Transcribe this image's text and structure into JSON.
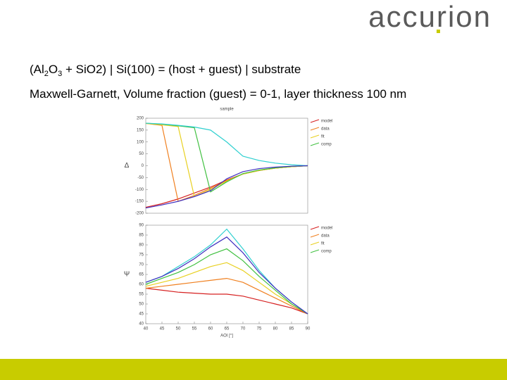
{
  "logo": "accurion",
  "heading": [
    "(Al",
    "2",
    "O",
    "3",
    " + SiO2) | Si(100) = (host + guest) | substrate"
  ],
  "subheading": "Maxwell-Garnett, Volume fraction (guest) = 0-1, layer thickness 100 nm",
  "chart_data": [
    {
      "type": "line",
      "title": "sample",
      "y_label": "Δ",
      "x": [
        40,
        45,
        50,
        55,
        60,
        65,
        70,
        75,
        80,
        85,
        90
      ],
      "xlim": [
        40,
        90
      ],
      "ylim": [
        -200,
        200
      ],
      "yticks": [
        -200,
        -150,
        -100,
        -50,
        0,
        50,
        100,
        150,
        200
      ],
      "legend": [
        "model",
        "data",
        "fit",
        "comp"
      ],
      "series": [
        {
          "color": "#d62020",
          "values": [
            -175,
            -160,
            -140,
            -115,
            -90,
            -60,
            -35,
            -20,
            -10,
            -4,
            0
          ]
        },
        {
          "color": "#f08020",
          "values": [
            178,
            170,
            -150,
            -125,
            -95,
            -62,
            -35,
            -20,
            -10,
            -4,
            0
          ]
        },
        {
          "color": "#e8d020",
          "values": [
            178,
            172,
            165,
            -130,
            -100,
            -65,
            -35,
            -20,
            -10,
            -4,
            0
          ]
        },
        {
          "color": "#40c040",
          "values": [
            179,
            175,
            168,
            160,
            -110,
            -68,
            -33,
            -18,
            -9,
            -3,
            0
          ]
        },
        {
          "color": "#30d0d0",
          "values": [
            179,
            176,
            170,
            163,
            150,
            100,
            40,
            22,
            11,
            4,
            0
          ]
        },
        {
          "color": "#4030c0",
          "values": [
            -178,
            -165,
            -150,
            -130,
            -105,
            -55,
            -25,
            -12,
            -6,
            -2,
            0
          ]
        }
      ]
    },
    {
      "type": "line",
      "y_label": "Ψ",
      "x_label": "AOI [°]",
      "x": [
        40,
        45,
        50,
        55,
        60,
        65,
        70,
        75,
        80,
        85,
        90
      ],
      "xlim": [
        40,
        90
      ],
      "ylim": [
        40,
        90
      ],
      "xticks": [
        40,
        45,
        50,
        55,
        60,
        65,
        70,
        75,
        80,
        85,
        90
      ],
      "yticks": [
        40,
        45,
        50,
        55,
        60,
        65,
        70,
        75,
        80,
        85,
        90
      ],
      "legend": [
        "model",
        "data",
        "fit",
        "comp"
      ],
      "series": [
        {
          "color": "#d62020",
          "values": [
            58,
            57,
            56,
            55.5,
            55,
            55,
            54,
            52,
            50,
            48,
            45
          ]
        },
        {
          "color": "#f08020",
          "values": [
            58,
            59,
            60,
            61,
            62,
            63,
            61,
            57,
            53,
            49,
            45
          ]
        },
        {
          "color": "#e8d020",
          "values": [
            59,
            61,
            63,
            66,
            69,
            71,
            67,
            61,
            55,
            50,
            45
          ]
        },
        {
          "color": "#40c040",
          "values": [
            60,
            63,
            66,
            70,
            75,
            78,
            72,
            64,
            57,
            50,
            45
          ]
        },
        {
          "color": "#30d0d0",
          "values": [
            61,
            64,
            69,
            74,
            80,
            88,
            78,
            67,
            58,
            51,
            45
          ]
        },
        {
          "color": "#4030c0",
          "values": [
            61,
            64,
            68,
            73,
            79,
            84,
            76,
            66,
            58,
            51,
            45
          ]
        }
      ]
    }
  ]
}
